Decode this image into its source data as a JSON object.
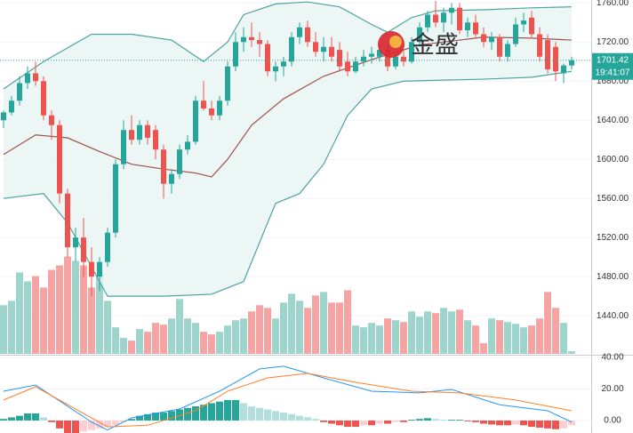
{
  "chart_data": [
    {
      "type": "candlestick",
      "watermark": "金盛",
      "countdown": "19:41:07",
      "ylim": [
        1401,
        1763
      ],
      "yticks": [
        {
          "value": 1440,
          "label": "1440.00"
        },
        {
          "value": 1480,
          "label": "1480.00"
        },
        {
          "value": 1520,
          "label": "1520.00"
        },
        {
          "value": 1560,
          "label": "1560.00"
        },
        {
          "value": 1600,
          "label": "1600.00"
        },
        {
          "value": 1640,
          "label": "1640.00"
        },
        {
          "value": 1680,
          "label": "1680.00"
        },
        {
          "value": 1720,
          "label": "1720.00"
        },
        {
          "value": 1760,
          "label": "1760.00"
        }
      ],
      "grid": true,
      "up_color": "#26a69a",
      "down_color": "#ef5350",
      "volume_up_color": "#9dd5cd",
      "volume_down_color": "#f5a3a3",
      "volume_ylim": [
        0,
        400
      ],
      "open": [
        1640,
        1648,
        1660,
        1678,
        1688,
        1680,
        1645,
        1635,
        1565,
        1510,
        1520,
        1495,
        1480,
        1495,
        1525,
        1595,
        1630,
        1620,
        1635,
        1630,
        1610,
        1575,
        1585,
        1610,
        1618,
        1660,
        1652,
        1645,
        1660,
        1695,
        1720,
        1725,
        1722,
        1718,
        1690,
        1695,
        1700,
        1725,
        1735,
        1720,
        1710,
        1715,
        1712,
        1700,
        1690,
        1700,
        1705,
        1705,
        1712,
        1695,
        1705,
        1700,
        1720,
        1735,
        1748,
        1740,
        1750,
        1755,
        1732,
        1740,
        1728,
        1720,
        1725,
        1705,
        1718,
        1738,
        1745,
        1728,
        1722,
        1715,
        1688,
        1696
      ],
      "high": [
        1650,
        1665,
        1685,
        1695,
        1700,
        1685,
        1650,
        1640,
        1570,
        1530,
        1540,
        1510,
        1500,
        1530,
        1600,
        1640,
        1645,
        1640,
        1640,
        1635,
        1615,
        1590,
        1615,
        1625,
        1665,
        1680,
        1660,
        1665,
        1700,
        1730,
        1735,
        1740,
        1730,
        1722,
        1700,
        1705,
        1730,
        1740,
        1742,
        1730,
        1725,
        1725,
        1720,
        1710,
        1705,
        1712,
        1715,
        1718,
        1718,
        1708,
        1712,
        1725,
        1740,
        1752,
        1762,
        1755,
        1760,
        1760,
        1745,
        1748,
        1735,
        1730,
        1728,
        1722,
        1745,
        1750,
        1752,
        1735,
        1728,
        1720,
        1698,
        1705
      ],
      "low": [
        1632,
        1645,
        1655,
        1672,
        1675,
        1640,
        1620,
        1555,
        1500,
        1495,
        1480,
        1460,
        1465,
        1490,
        1520,
        1590,
        1615,
        1615,
        1615,
        1600,
        1560,
        1565,
        1580,
        1605,
        1615,
        1650,
        1640,
        1640,
        1655,
        1690,
        1710,
        1715,
        1705,
        1685,
        1680,
        1685,
        1695,
        1718,
        1715,
        1705,
        1700,
        1700,
        1690,
        1685,
        1688,
        1695,
        1698,
        1700,
        1690,
        1692,
        1695,
        1698,
        1715,
        1730,
        1735,
        1730,
        1738,
        1728,
        1725,
        1725,
        1715,
        1712,
        1700,
        1700,
        1715,
        1730,
        1725,
        1700,
        1688,
        1680,
        1678,
        1692
      ],
      "close": [
        1648,
        1660,
        1678,
        1688,
        1680,
        1645,
        1635,
        1565,
        1510,
        1520,
        1495,
        1480,
        1495,
        1525,
        1595,
        1630,
        1620,
        1635,
        1622,
        1610,
        1575,
        1585,
        1610,
        1618,
        1660,
        1652,
        1645,
        1660,
        1695,
        1720,
        1725,
        1722,
        1718,
        1690,
        1695,
        1700,
        1725,
        1735,
        1720,
        1710,
        1715,
        1705,
        1695,
        1690,
        1700,
        1705,
        1708,
        1712,
        1695,
        1705,
        1700,
        1720,
        1735,
        1748,
        1740,
        1750,
        1755,
        1732,
        1740,
        1728,
        1720,
        1725,
        1705,
        1718,
        1738,
        1742,
        1728,
        1705,
        1692,
        1690,
        1696,
        1701.42
      ],
      "volume": [
        55,
        60,
        92,
        82,
        88,
        75,
        95,
        100,
        110,
        105,
        100,
        75,
        90,
        60,
        30,
        18,
        15,
        28,
        25,
        35,
        33,
        40,
        62,
        40,
        35,
        25,
        22,
        25,
        32,
        38,
        40,
        48,
        55,
        52,
        40,
        58,
        68,
        60,
        52,
        66,
        70,
        58,
        58,
        72,
        32,
        30,
        35,
        32,
        40,
        38,
        36,
        48,
        42,
        48,
        46,
        52,
        48,
        50,
        38,
        32,
        12,
        40,
        38,
        36,
        34,
        30,
        32,
        40,
        70,
        52,
        35,
        3
      ],
      "band_fill": "#e6f4f2",
      "overlays": [
        {
          "color": "#4fa3a0",
          "x": [
            0,
            5,
            11,
            16,
            21,
            25,
            28,
            30,
            34,
            38,
            42,
            46,
            48,
            51,
            54,
            60,
            66,
            71
          ],
          "values": [
            1672,
            1700,
            1728,
            1728,
            1722,
            1700,
            1720,
            1748,
            1759,
            1761,
            1756,
            1738,
            1730,
            1745,
            1752,
            1753,
            1755,
            1756
          ]
        },
        {
          "color": "#a0524d",
          "x": [
            0,
            4,
            8,
            12,
            16,
            20,
            24,
            26,
            28,
            31,
            35,
            40,
            46,
            52,
            60,
            66,
            71
          ],
          "values": [
            1605,
            1625,
            1622,
            1608,
            1595,
            1590,
            1586,
            1582,
            1600,
            1635,
            1662,
            1685,
            1702,
            1717,
            1725,
            1724,
            1722
          ]
        },
        {
          "color": "#4fa3a0",
          "x": [
            0,
            5,
            8,
            11,
            13,
            20,
            26,
            30,
            34,
            37,
            40,
            43,
            46,
            50,
            60,
            66,
            71
          ],
          "values": [
            1560,
            1565,
            1535,
            1490,
            1460,
            1460,
            1462,
            1475,
            1555,
            1565,
            1595,
            1645,
            1672,
            1680,
            1682,
            1684,
            1690
          ]
        }
      ]
    },
    {
      "type": "macd",
      "ylim": [
        -7.9,
        41.1
      ],
      "yticks": [
        {
          "value": 0,
          "label": "0.00"
        },
        {
          "value": 20,
          "label": "20.00"
        },
        {
          "value": 40,
          "label": "40.00"
        }
      ],
      "colors": {
        "up_rising": "#26a69a",
        "up_falling": "#b2dfdb",
        "down_falling": "#ef5350",
        "down_rising": "#ffcdd2"
      },
      "histogram": [
        1,
        2,
        3,
        4.5,
        4.5,
        2,
        -1,
        -5,
        -8,
        -8,
        -7,
        -6,
        -5,
        -4,
        -3,
        -1,
        1,
        3,
        4,
        5,
        5,
        6,
        7,
        8,
        9,
        10,
        11,
        12,
        13,
        13,
        11,
        9,
        8,
        7,
        6,
        5,
        4,
        3,
        2,
        1,
        -1,
        -2,
        -3,
        -4,
        -4,
        -3,
        -3,
        -2,
        -2,
        -1,
        -1,
        0.5,
        1,
        1.5,
        1,
        0.5,
        0.5,
        0.5,
        -0.5,
        -1,
        -2,
        -2.5,
        -3,
        -3,
        -2.5,
        -3,
        -4,
        -4.5,
        -5,
        -5.5,
        -5,
        -3
      ],
      "series": [
        {
          "color": "#2196f3",
          "x": [
            0,
            4,
            6,
            11,
            13,
            16,
            22,
            27,
            32,
            35,
            40,
            46,
            52,
            56,
            62,
            68,
            71
          ],
          "values": [
            18.6,
            22.5,
            15.8,
            -1,
            -6,
            1.7,
            7.3,
            18.6,
            32.7,
            34.4,
            27,
            18.6,
            17.5,
            19.7,
            10,
            6.2,
            -1
          ]
        },
        {
          "color": "#ff7f27",
          "x": [
            0,
            4,
            9,
            13,
            18,
            24,
            28,
            33,
            38,
            44,
            51,
            57,
            64,
            71
          ],
          "values": [
            13,
            21.4,
            7.3,
            -4,
            -3,
            6.2,
            18.6,
            27,
            29.9,
            24.2,
            18.6,
            17.5,
            13,
            6.2
          ]
        }
      ]
    }
  ]
}
